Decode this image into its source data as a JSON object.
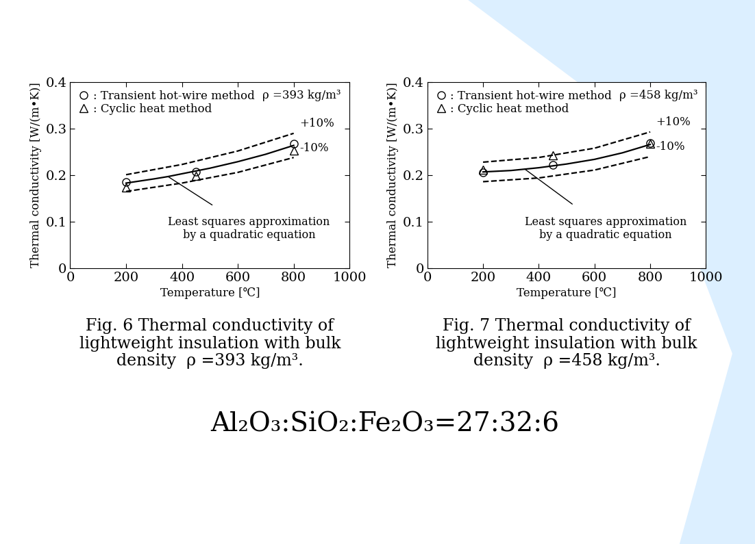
{
  "chart_data": [
    {
      "type": "line",
      "note": "ρ =393 kg/m³",
      "caption": "Fig. 6 Thermal conductivity of\nlightweight insulation with bulk\ndensity  ρ =393 kg/m³.",
      "x_label": "Temperature [℃]",
      "y_label": "Thermal conductivity [W/(m•K)]",
      "xlim": [
        0,
        1000
      ],
      "xticks": [
        0,
        200,
        400,
        600,
        800,
        1000
      ],
      "ylim": [
        0,
        0.4
      ],
      "yticks": [
        0,
        0.1,
        0.2,
        0.3,
        0.4
      ],
      "legend": "upper left",
      "grid": false,
      "annotation": "Least squares approximation\nby a quadratic equation",
      "series": [
        {
          "name": ": Transient hot-wire method",
          "type": "scatter",
          "marker": "circle",
          "color": "#000000",
          "x": [
            200,
            450,
            800
          ],
          "values": [
            0.185,
            0.208,
            0.268
          ]
        },
        {
          "name": ": Cyclic heat method",
          "type": "scatter",
          "marker": "triangle",
          "color": "#000000",
          "x": [
            200,
            450,
            800
          ],
          "values": [
            0.173,
            0.198,
            0.253
          ]
        },
        {
          "type": "line",
          "line_style": "solid",
          "color": "#000000",
          "x": [
            200,
            300,
            350,
            400,
            500,
            600,
            700,
            800
          ],
          "values": [
            0.183,
            0.192,
            0.197,
            0.203,
            0.215,
            0.229,
            0.245,
            0.264
          ]
        },
        {
          "type": "line",
          "line_style": "dashed",
          "color": "#000000",
          "end_label": "+10%",
          "x": [
            200,
            400,
            600,
            800
          ],
          "values": [
            0.201,
            0.223,
            0.252,
            0.29
          ]
        },
        {
          "type": "line",
          "line_style": "dashed",
          "color": "#000000",
          "end_label": "-10%",
          "x": [
            200,
            400,
            600,
            800
          ],
          "values": [
            0.165,
            0.183,
            0.206,
            0.238
          ]
        }
      ]
    },
    {
      "type": "line",
      "note": "ρ =458 kg/m³",
      "caption": "Fig. 7 Thermal conductivity of\nlightweight insulation with bulk\ndensity  ρ =458 kg/m³.",
      "x_label": "Temperature [℃]",
      "y_label": "Thermal conductivity [W/(m•K)]",
      "xlim": [
        0,
        1000
      ],
      "xticks": [
        0,
        200,
        400,
        600,
        800,
        1000
      ],
      "ylim": [
        0,
        0.4
      ],
      "yticks": [
        0,
        0.1,
        0.2,
        0.3,
        0.4
      ],
      "legend": "upper left",
      "grid": false,
      "annotation": "Least squares approximation\nby a quadratic equation",
      "series": [
        {
          "name": ": Transient hot-wire method",
          "type": "scatter",
          "marker": "circle",
          "color": "#000000",
          "x": [
            200,
            450,
            800
          ],
          "values": [
            0.206,
            0.222,
            0.269
          ]
        },
        {
          "name": ": Cyclic heat method",
          "type": "scatter",
          "marker": "triangle",
          "color": "#000000",
          "x": [
            200,
            450,
            800
          ],
          "values": [
            0.212,
            0.243,
            0.267
          ]
        },
        {
          "type": "line",
          "line_style": "solid",
          "color": "#000000",
          "x": [
            200,
            300,
            350,
            400,
            500,
            600,
            700,
            800
          ],
          "values": [
            0.207,
            0.21,
            0.213,
            0.216,
            0.224,
            0.234,
            0.248,
            0.266
          ]
        },
        {
          "type": "line",
          "line_style": "dashed",
          "color": "#000000",
          "end_label": "+10%",
          "x": [
            200,
            400,
            600,
            800
          ],
          "values": [
            0.228,
            0.238,
            0.258,
            0.293
          ]
        },
        {
          "type": "line",
          "line_style": "dashed",
          "color": "#000000",
          "end_label": "-10%",
          "x": [
            200,
            400,
            600,
            800
          ],
          "values": [
            0.186,
            0.194,
            0.211,
            0.24
          ]
        }
      ]
    }
  ],
  "footer": "Al₂O₃:SiO₂:Fe₂O₃=27:32:6"
}
